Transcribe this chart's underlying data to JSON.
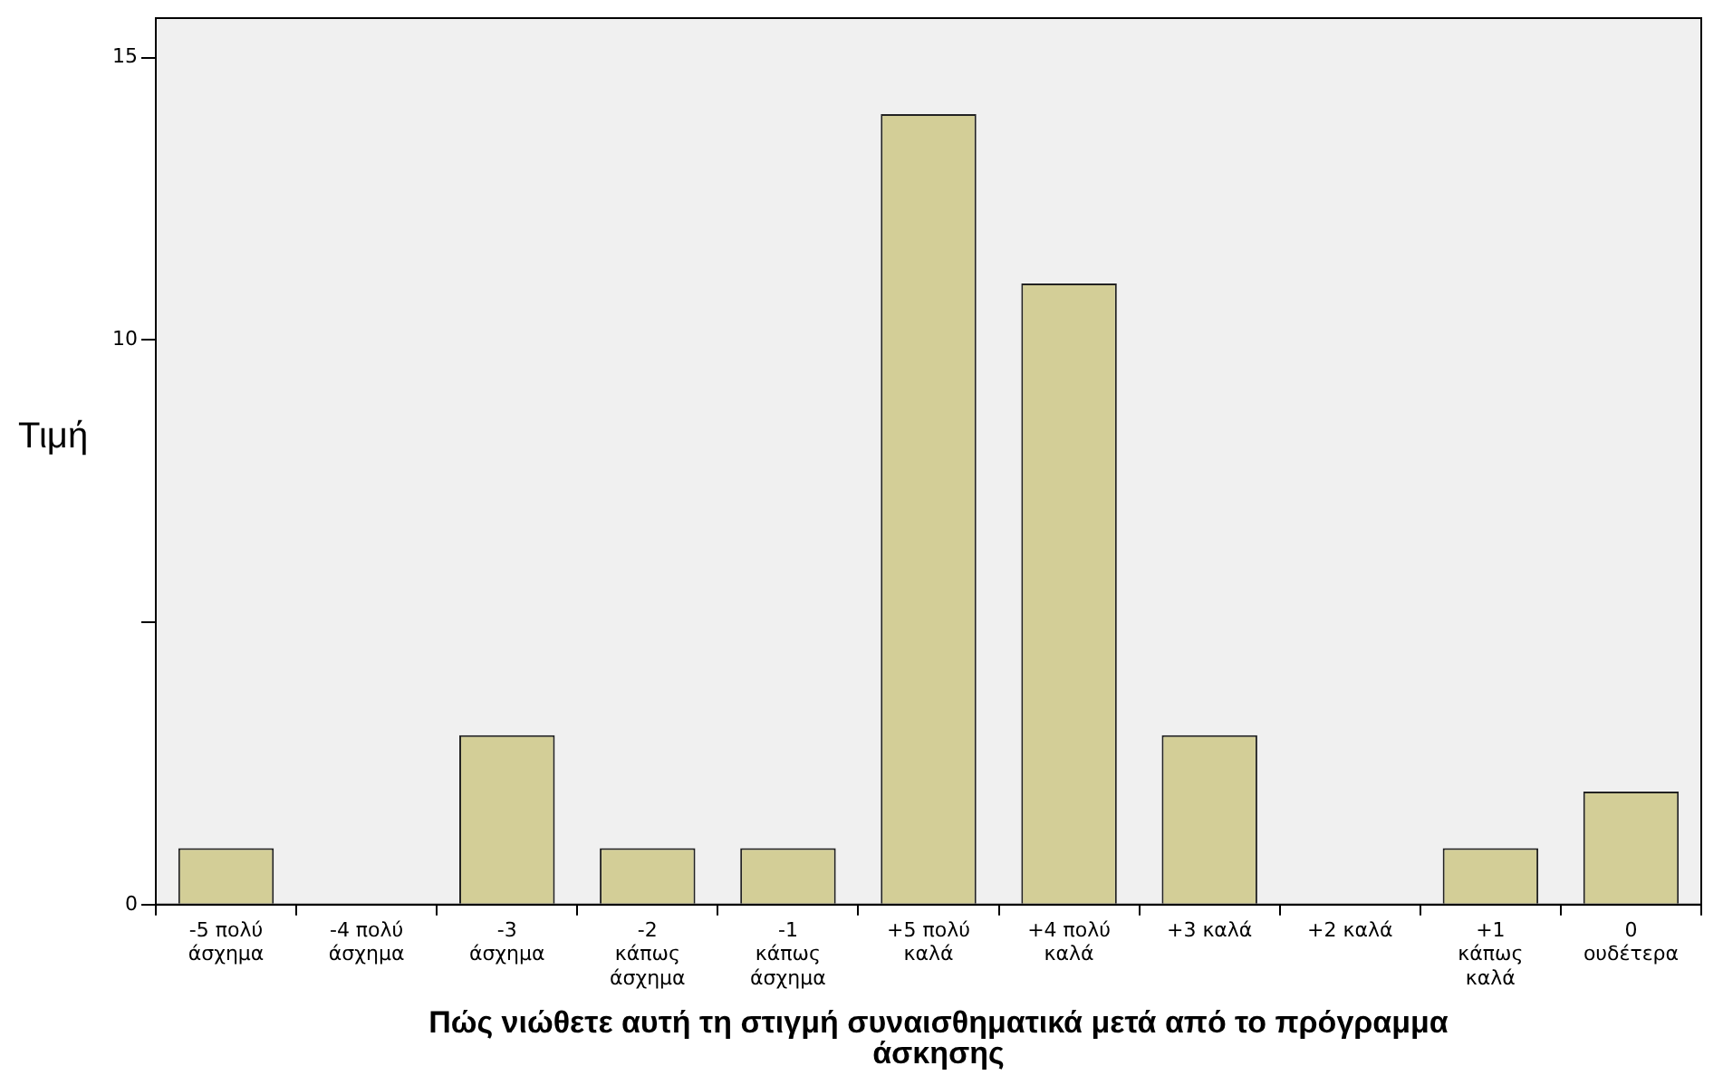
{
  "chart_data": {
    "type": "bar",
    "xlabel": "Πώς νιώθετε αυτή τη στιγμή συναισθηματικά μετά από το πρόγραμμα άσκησης",
    "ylabel": "Τιμή",
    "categories": [
      "-5 πολύ\nάσχημα",
      "-4 πολύ\nάσχημα",
      "-3\nάσχημα",
      "-2\nκάπως\nάσχημα",
      "-1\nκάπως\nάσχημα",
      "+5 πολύ\nκαλά",
      "+4 πολύ\nκαλά",
      "+3 καλά",
      "+2 καλά",
      "+1\nκάπως\nκαλά",
      "0\nουδέτερα"
    ],
    "values": [
      1,
      0,
      3,
      1,
      1,
      14,
      11,
      3,
      0,
      1,
      2
    ],
    "color": "#d3ce97",
    "ylim": [
      0,
      15.7
    ],
    "yticks": [
      0,
      {
        "value": 5,
        "label": null
      },
      10,
      15
    ],
    "grid": false
  }
}
